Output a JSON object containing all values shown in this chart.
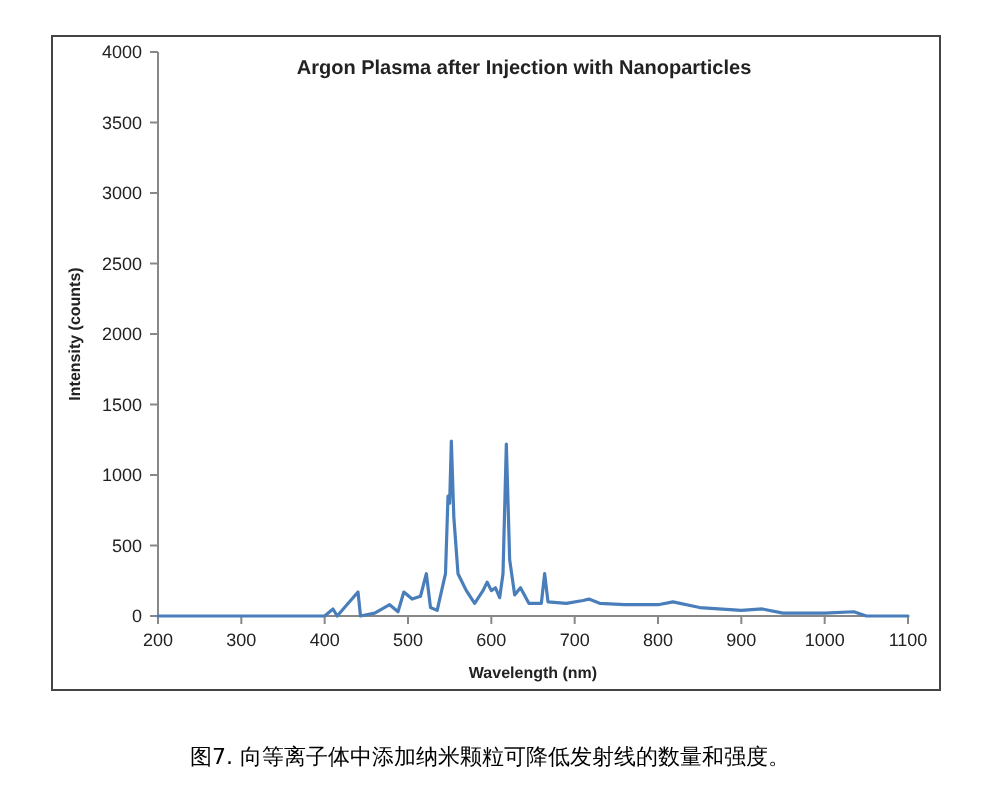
{
  "chart_data": {
    "type": "line",
    "title": "Argon Plasma after Injection with Nanoparticles",
    "xlabel": "Wavelength (nm)",
    "ylabel": "Intensity (counts)",
    "annotations": [
      "图7. 向等离子体中添加纳米颗粒可降低发射线的数量和强度。"
    ],
    "x": [
      200,
      300,
      400,
      410,
      415,
      440,
      443,
      460,
      478,
      488,
      495,
      505,
      515,
      522,
      527,
      535,
      545,
      548,
      550,
      552,
      555,
      560,
      570,
      580,
      590,
      595,
      600,
      605,
      610,
      614,
      618,
      622,
      628,
      635,
      645,
      660,
      664,
      668,
      690,
      710,
      717,
      730,
      760,
      800,
      818,
      850,
      900,
      925,
      950,
      1000,
      1035,
      1050,
      1100
    ],
    "series": [
      {
        "color": "#4a7ebb",
        "values": [
          0,
          0,
          0,
          50,
          0,
          170,
          0,
          20,
          80,
          30,
          170,
          120,
          140,
          300,
          60,
          40,
          300,
          850,
          800,
          1240,
          700,
          300,
          180,
          90,
          180,
          240,
          180,
          200,
          130,
          300,
          1220,
          400,
          150,
          200,
          90,
          90,
          300,
          100,
          90,
          110,
          120,
          90,
          80,
          80,
          100,
          60,
          40,
          50,
          20,
          20,
          30,
          0,
          0
        ]
      }
    ],
    "xlim": [
      200,
      1100
    ],
    "ylim": [
      0,
      4000
    ],
    "xticks": [
      200,
      300,
      400,
      500,
      600,
      700,
      800,
      900,
      1000,
      1100
    ],
    "yticks": [
      0,
      500,
      1000,
      1500,
      2000,
      2500,
      3000,
      3500,
      4000
    ],
    "grid": false,
    "marker": "none",
    "line_style": "solid"
  }
}
